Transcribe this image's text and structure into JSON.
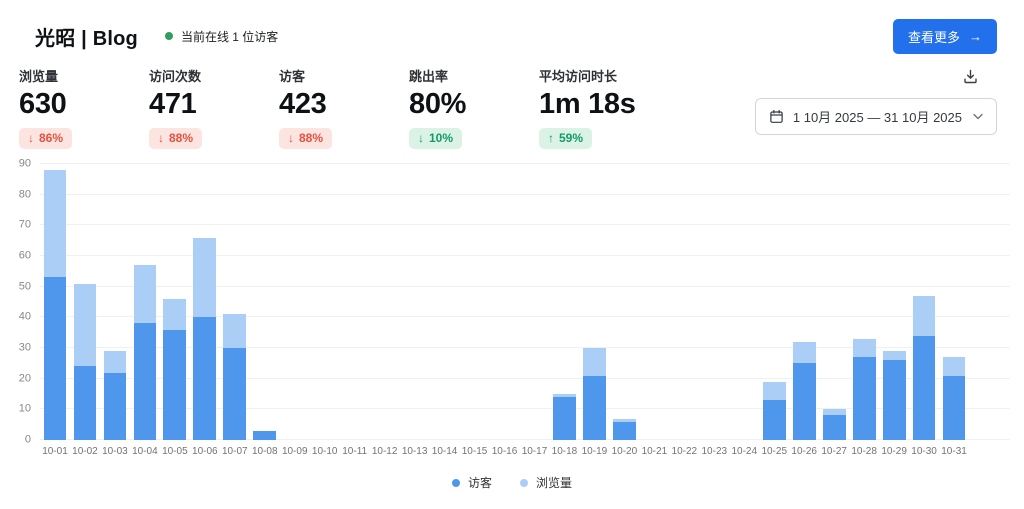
{
  "header": {
    "title": "光昭 | Blog",
    "online_text": "当前在线 1 位访客",
    "more_label": "查看更多",
    "more_arrow": "→"
  },
  "stats": [
    {
      "label": "浏览量",
      "value": "630",
      "arrow": "↓",
      "change": "86%",
      "tone": "negative"
    },
    {
      "label": "访问次数",
      "value": "471",
      "arrow": "↓",
      "change": "88%",
      "tone": "negative"
    },
    {
      "label": "访客",
      "value": "423",
      "arrow": "↓",
      "change": "88%",
      "tone": "negative"
    },
    {
      "label": "跳出率",
      "value": "80%",
      "arrow": "↓",
      "change": "10%",
      "tone": "positive"
    },
    {
      "label": "平均访问时长",
      "value": "1m 18s",
      "arrow": "↑",
      "change": "59%",
      "tone": "positive"
    }
  ],
  "toolbar": {
    "date_range": "1 10月 2025 — 31 10月 2025"
  },
  "icons": {
    "online-dot-icon": "● green",
    "arrow-right-icon": "→",
    "arrow-down-icon": "↓",
    "arrow-up-icon": "↑",
    "download-icon": "arrow-into-tray",
    "calendar-icon": "calendar",
    "chevron-down-icon": "v"
  },
  "colors": {
    "accent_button": "#2270ec",
    "online_dot": "#2f9e5f",
    "badge_negative_bg": "#fce5e1",
    "badge_negative_text": "#e8503e",
    "badge_positive_bg": "#daf3e6",
    "badge_positive_text": "#149a68",
    "bar_visitors": "#4f97ed",
    "bar_views": "#abcef6",
    "gridline": "#eef1f2"
  },
  "chart_data": {
    "type": "bar",
    "title": "",
    "xlabel": "",
    "ylabel": "",
    "ylim": [
      0,
      90
    ],
    "ytick_step": 10,
    "grid": true,
    "legend_position": "bottom",
    "overlay": true,
    "x": [
      "10-01",
      "10-02",
      "10-03",
      "10-04",
      "10-05",
      "10-06",
      "10-07",
      "10-08",
      "10-09",
      "10-10",
      "10-11",
      "10-12",
      "10-13",
      "10-14",
      "10-15",
      "10-16",
      "10-17",
      "10-18",
      "10-19",
      "10-20",
      "10-21",
      "10-22",
      "10-23",
      "10-24",
      "10-25",
      "10-26",
      "10-27",
      "10-28",
      "10-29",
      "10-30",
      "10-31"
    ],
    "series": [
      {
        "name": "访客",
        "color": "#4f97ed",
        "values": [
          53,
          24,
          22,
          38,
          36,
          40,
          30,
          3,
          0,
          0,
          0,
          0,
          0,
          0,
          0,
          0,
          0,
          14,
          21,
          6,
          0,
          0,
          0,
          0,
          13,
          25,
          8,
          27,
          26,
          34,
          21
        ]
      },
      {
        "name": "浏览量",
        "color": "#abcef6",
        "values": [
          88,
          51,
          29,
          57,
          46,
          66,
          41,
          3,
          0,
          0,
          0,
          0,
          0,
          0,
          0,
          0,
          0,
          15,
          30,
          7,
          0,
          0,
          0,
          0,
          19,
          32,
          10,
          33,
          29,
          47,
          27
        ]
      }
    ]
  }
}
